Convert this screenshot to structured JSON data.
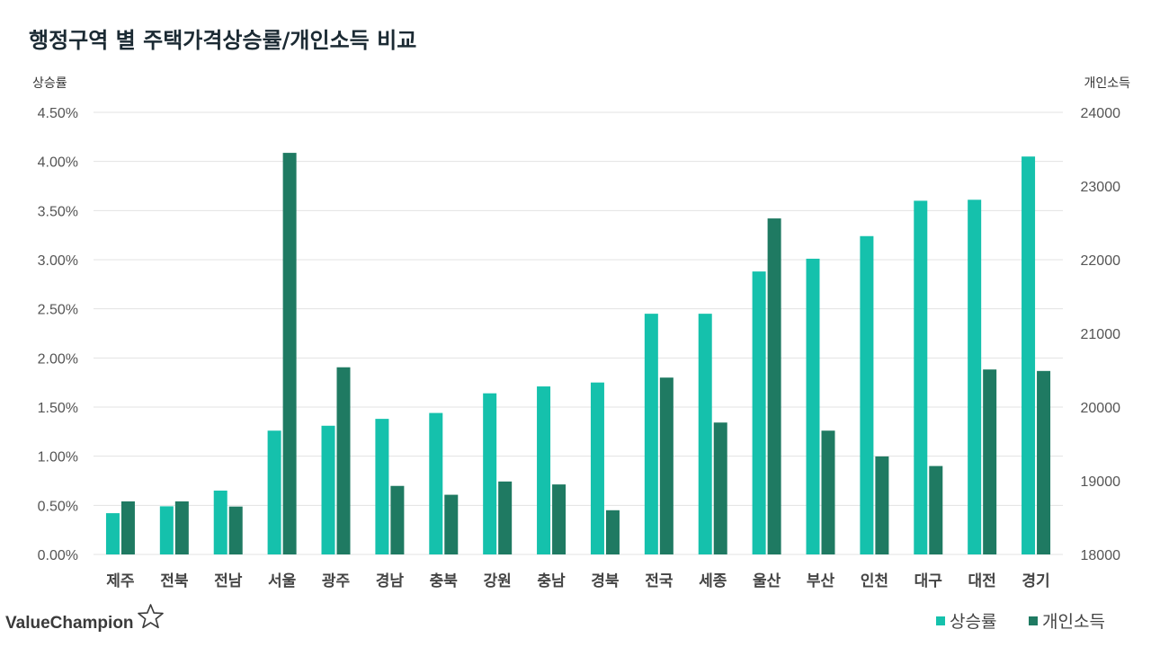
{
  "chart_data": {
    "type": "bar",
    "title": "행정구역 별 주택가격상승률/개인소득 비교",
    "ylabel": "상승률",
    "y2label": "개인소득",
    "ylim": [
      0,
      4.5
    ],
    "y2lim": [
      18000,
      24000
    ],
    "y_ticks": [
      "0.00%",
      "0.50%",
      "1.00%",
      "1.50%",
      "2.00%",
      "2.50%",
      "3.00%",
      "3.50%",
      "4.00%",
      "4.50%"
    ],
    "y2_ticks": [
      "18000",
      "19000",
      "20000",
      "21000",
      "22000",
      "23000",
      "24000"
    ],
    "categories": [
      "제주",
      "전북",
      "전남",
      "서울",
      "광주",
      "경남",
      "충북",
      "강원",
      "충남",
      "경북",
      "전국",
      "세종",
      "울산",
      "부산",
      "인천",
      "대구",
      "대전",
      "경기"
    ],
    "series": [
      {
        "name": "상승률",
        "axis": "left",
        "unit": "%",
        "color": "#15c1ac",
        "values": [
          0.42,
          0.49,
          0.65,
          1.26,
          1.31,
          1.38,
          1.44,
          1.64,
          1.71,
          1.75,
          2.45,
          2.45,
          2.88,
          3.01,
          3.24,
          3.6,
          3.61,
          4.05
        ]
      },
      {
        "name": "개인소득",
        "axis": "right",
        "unit": "",
        "color": "#1f7a62",
        "values": [
          18720,
          18720,
          18650,
          23450,
          20540,
          18930,
          18810,
          18990,
          18950,
          18600,
          20400,
          19790,
          22560,
          19680,
          19330,
          19200,
          20510,
          20490
        ]
      }
    ],
    "legend_position": "bottom-right"
  },
  "brand": {
    "name": "ValueChampion",
    "icon": "star-outline-icon"
  }
}
